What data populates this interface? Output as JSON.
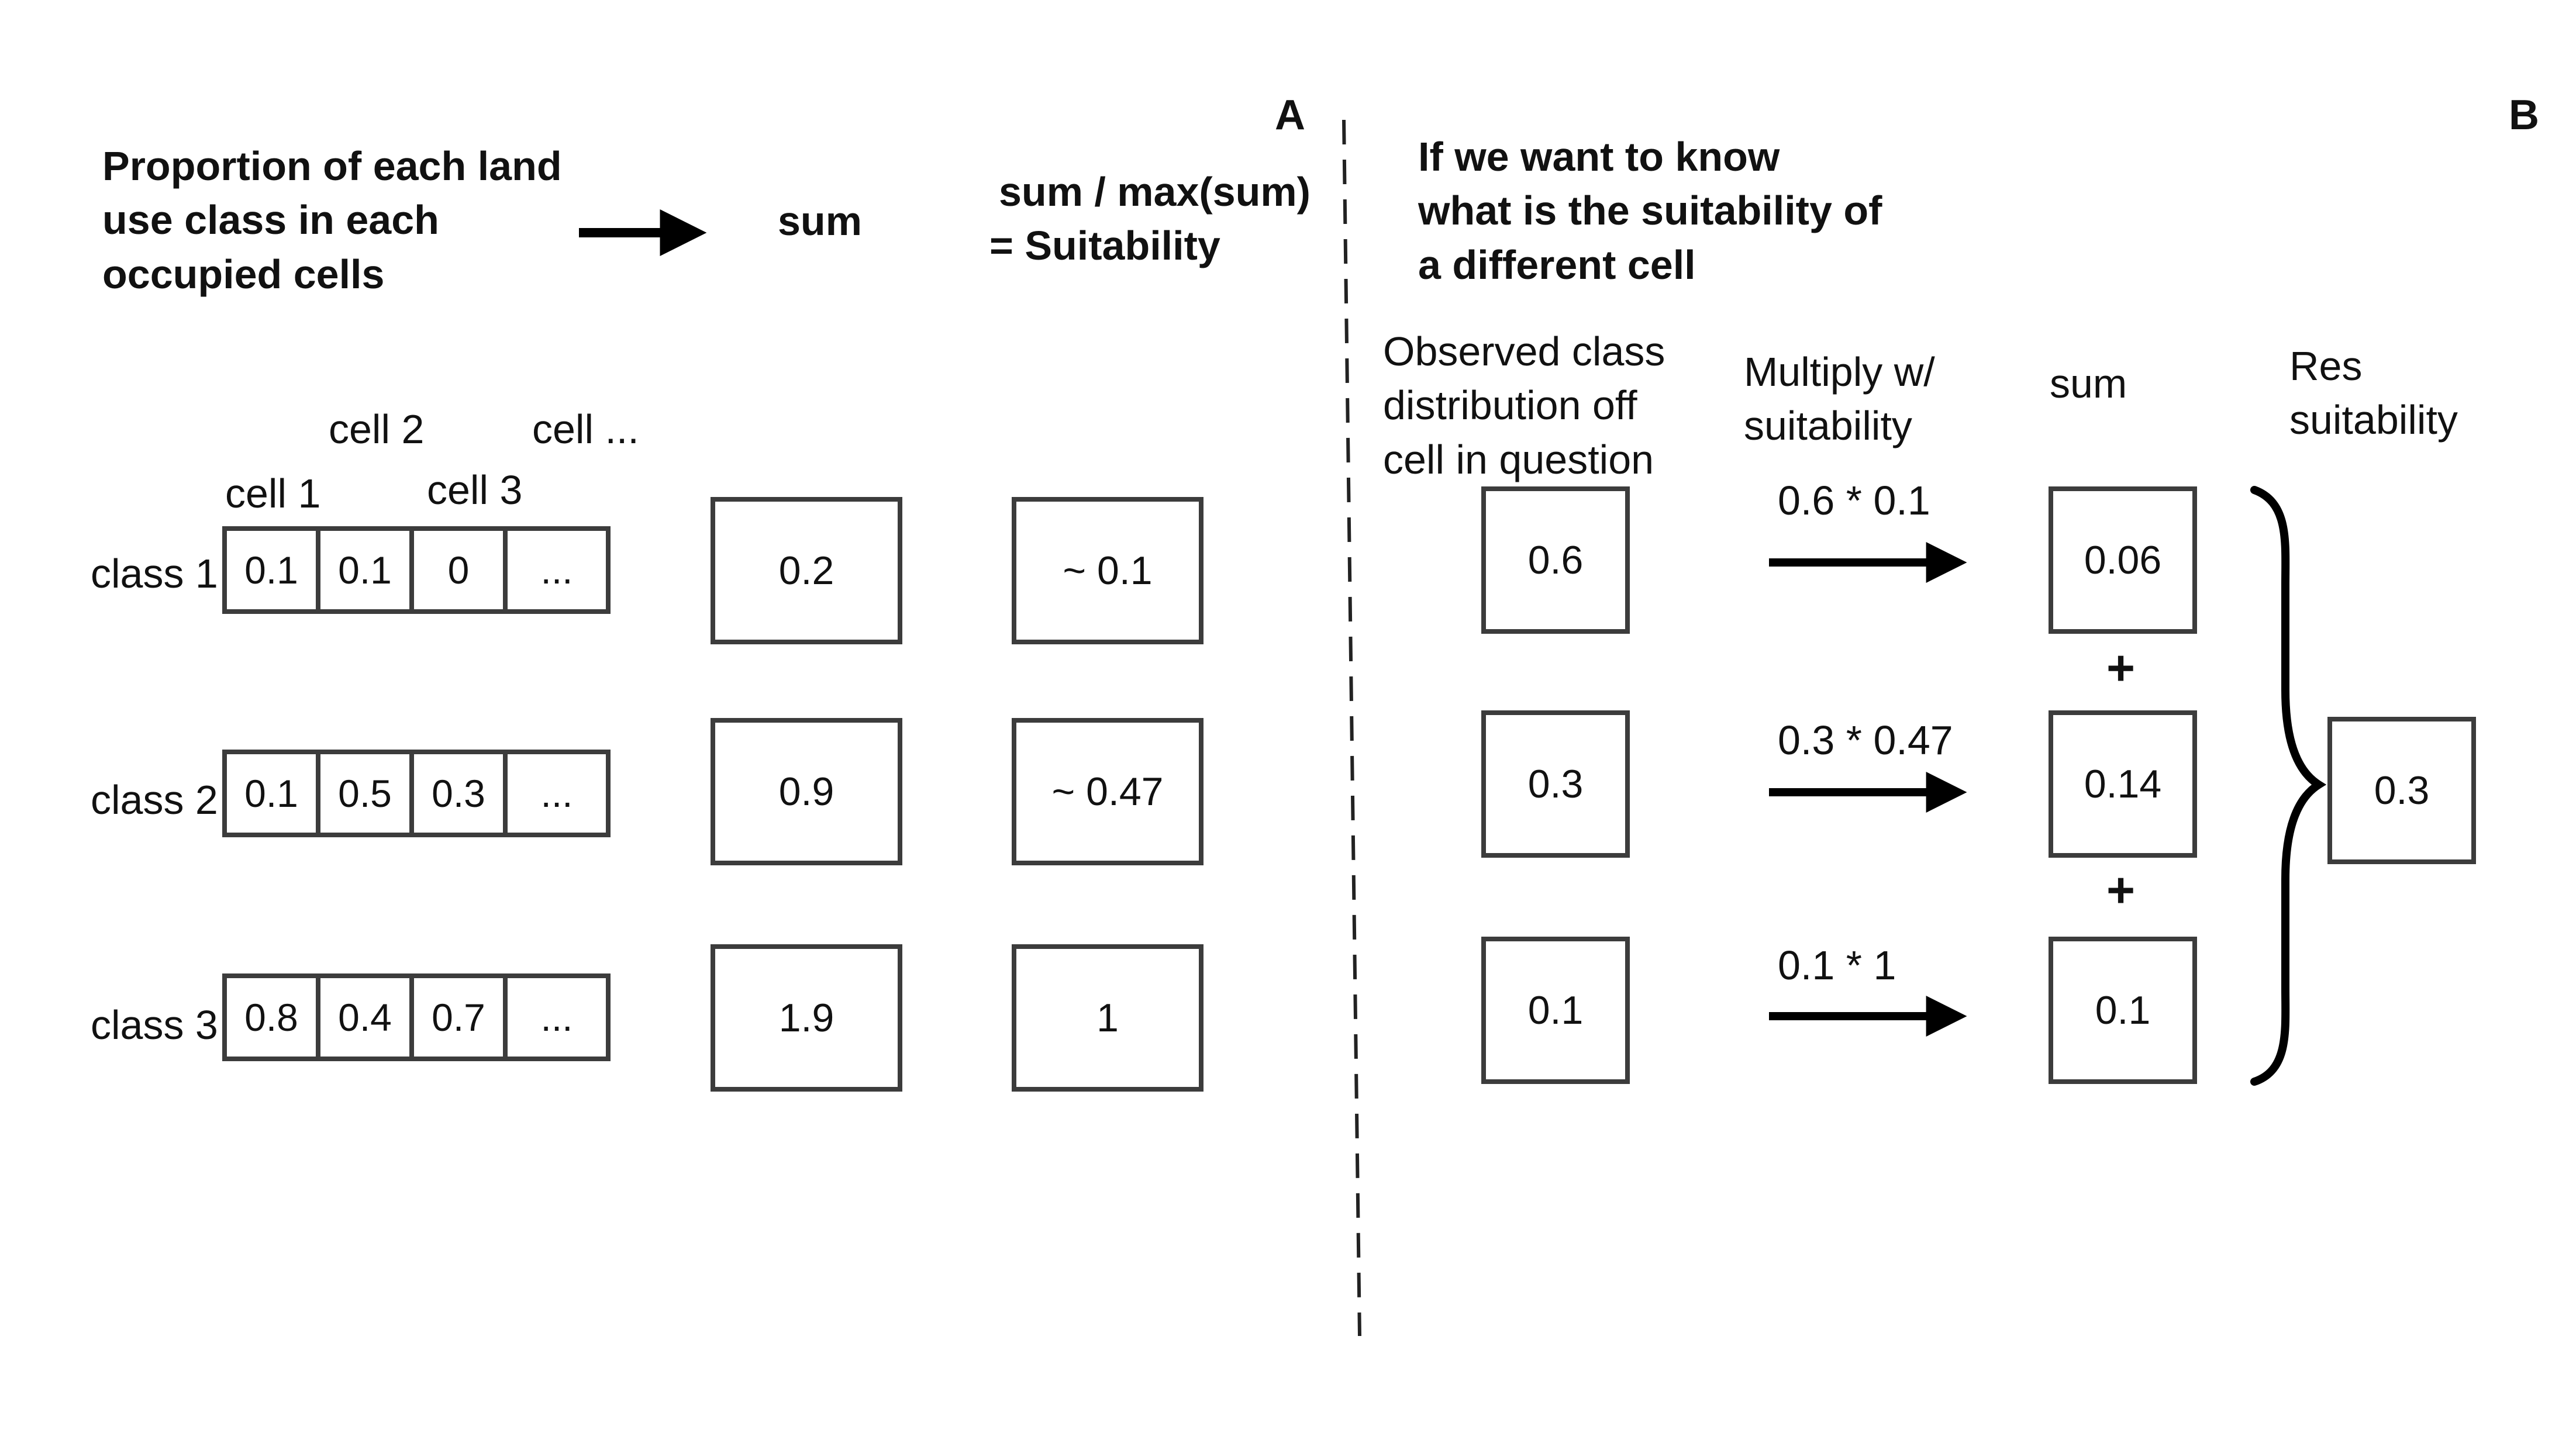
{
  "panel_labels": {
    "a": "A",
    "b": "B"
  },
  "panel_a": {
    "header_proportion": [
      "Proportion of each land",
      "use class in each",
      "occupied cells"
    ],
    "header_sum": "sum",
    "header_suitability": [
      "sum / max(sum)",
      "=  Suitability"
    ],
    "cell_labels": {
      "cell1": "cell 1",
      "cell2": "cell 2",
      "cell3": "cell 3",
      "cell_more": "cell ..."
    },
    "classes": [
      {
        "label": "class 1",
        "cells": [
          "0.1",
          "0.1",
          "0",
          "..."
        ],
        "sum": "0.2",
        "suitability": "~ 0.1"
      },
      {
        "label": "class 2",
        "cells": [
          "0.1",
          "0.5",
          "0.3",
          "..."
        ],
        "sum": "0.9",
        "suitability": "~ 0.47"
      },
      {
        "label": "class 3",
        "cells": [
          "0.8",
          "0.4",
          "0.7",
          "..."
        ],
        "sum": "1.9",
        "suitability": "1"
      }
    ]
  },
  "panel_b": {
    "header": [
      "If we want to know",
      "what is the suitability of",
      "a different cell"
    ],
    "col_observed": [
      "Observed class",
      "distribution off",
      "cell in question"
    ],
    "col_multiply": [
      "Multiply w/",
      "suitability"
    ],
    "col_sum": "sum",
    "col_result": [
      "Res",
      "suitability"
    ],
    "rows": [
      {
        "observed": "0.6",
        "formula": "0.6 * 0.1",
        "product": "0.06"
      },
      {
        "observed": "0.3",
        "formula": "0.3 * 0.47",
        "product": "0.14"
      },
      {
        "observed": "0.1",
        "formula": "0.1 * 1",
        "product": "0.1"
      }
    ],
    "plus": [
      "+",
      "+"
    ],
    "result": "0.3"
  }
}
